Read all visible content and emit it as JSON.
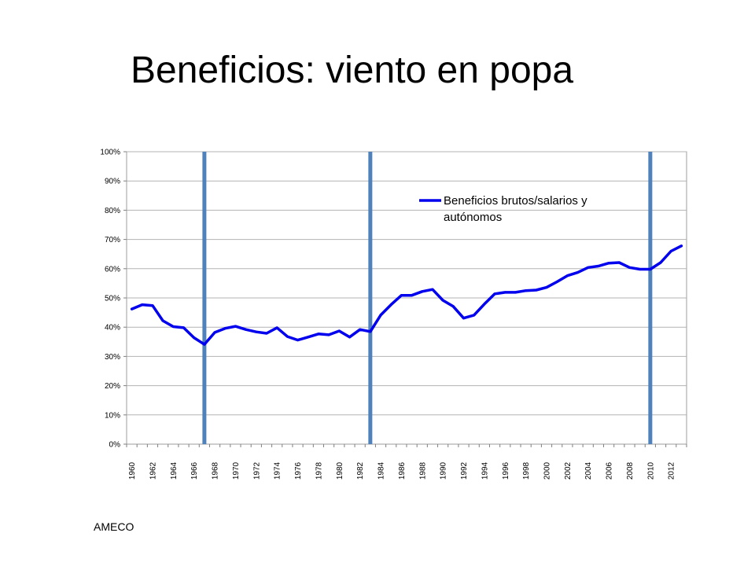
{
  "slide": {
    "title": "Beneficios: viento en popa",
    "source": "AMECO"
  },
  "colors": {
    "series_line": "#0000EE",
    "vertical_markers": "#4F81BD",
    "gridline": "#B3B3B3",
    "axis": "#808080",
    "text": "#000000"
  },
  "chart_data": {
    "type": "line",
    "title": "",
    "xlabel": "",
    "ylabel": "",
    "ylim": [
      0,
      1
    ],
    "y_ticks": [
      0,
      0.1,
      0.2,
      0.3,
      0.4,
      0.5,
      0.6,
      0.7,
      0.8,
      0.9,
      1.0
    ],
    "y_tick_labels": [
      "0%",
      "10%",
      "20%",
      "30%",
      "40%",
      "50%",
      "60%",
      "70%",
      "80%",
      "90%",
      "100%"
    ],
    "x_tick_labels": [
      "1960",
      "1962",
      "1964",
      "1966",
      "1968",
      "1970",
      "1972",
      "1974",
      "1976",
      "1978",
      "1980",
      "1982",
      "1984",
      "1986",
      "1988",
      "1990",
      "1992",
      "1994",
      "1996",
      "1998",
      "2000",
      "2002",
      "2004",
      "2006",
      "2008",
      "2010",
      "2012"
    ],
    "grid": true,
    "legend_position": "top-right",
    "vertical_markers": [
      1967,
      1983,
      2010
    ],
    "series": [
      {
        "name": "Beneficios brutos/salarios y autónomos",
        "x": [
          1960,
          1961,
          1962,
          1963,
          1964,
          1965,
          1966,
          1967,
          1968,
          1969,
          1970,
          1971,
          1972,
          1973,
          1974,
          1975,
          1976,
          1977,
          1978,
          1979,
          1980,
          1981,
          1982,
          1983,
          1984,
          1985,
          1986,
          1987,
          1988,
          1989,
          1990,
          1991,
          1992,
          1993,
          1994,
          1995,
          1996,
          1997,
          1998,
          1999,
          2000,
          2001,
          2002,
          2003,
          2004,
          2005,
          2006,
          2007,
          2008,
          2009,
          2010,
          2011,
          2012,
          2013
        ],
        "values": [
          0.462,
          0.477,
          0.474,
          0.422,
          0.402,
          0.398,
          0.364,
          0.341,
          0.382,
          0.396,
          0.403,
          0.392,
          0.384,
          0.379,
          0.398,
          0.368,
          0.356,
          0.366,
          0.377,
          0.374,
          0.387,
          0.366,
          0.392,
          0.385,
          0.441,
          0.477,
          0.509,
          0.509,
          0.522,
          0.529,
          0.492,
          0.471,
          0.431,
          0.441,
          0.479,
          0.514,
          0.519,
          0.519,
          0.525,
          0.527,
          0.536,
          0.555,
          0.576,
          0.587,
          0.604,
          0.609,
          0.619,
          0.621,
          0.604,
          0.598,
          0.598,
          0.621,
          0.66,
          0.678
        ]
      }
    ]
  }
}
